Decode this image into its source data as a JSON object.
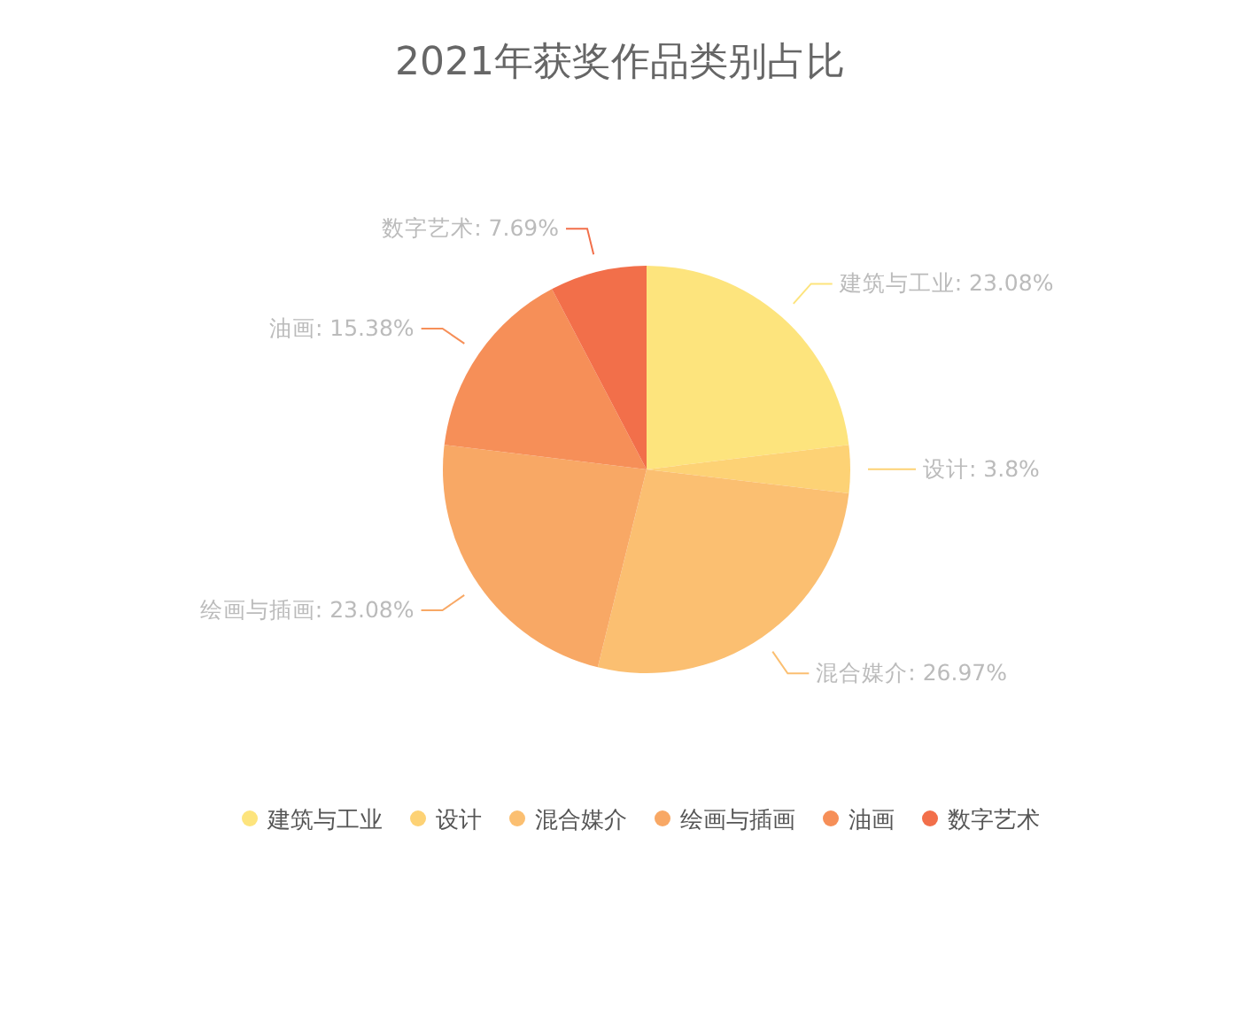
{
  "chart_data": {
    "type": "pie",
    "title": "2021年获奖作品类别占比",
    "categories": [
      "建筑与工业",
      "设计",
      "混合媒介",
      "绘画与插画",
      "油画",
      "数字艺术"
    ],
    "values": [
      23.08,
      3.8,
      26.97,
      23.08,
      15.38,
      7.69
    ],
    "value_labels": [
      "建筑与工业: 23.08%",
      "设计: 3.8%",
      "混合媒介: 26.97%",
      "绘画与插画: 23.08%",
      "油画: 15.38%",
      "数字艺术: 7.69%"
    ],
    "colors": [
      "#fde47d",
      "#fdd275",
      "#fbbf71",
      "#f8a865",
      "#f68f58",
      "#f26f4a"
    ],
    "legend": "bottom"
  }
}
